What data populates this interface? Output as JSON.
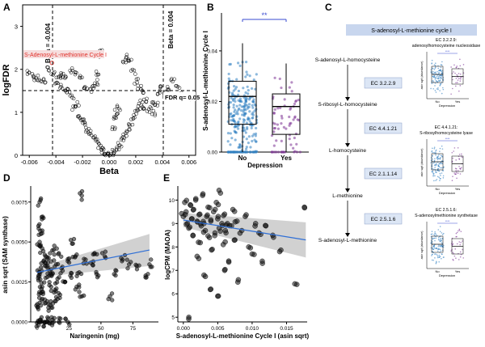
{
  "panels": {
    "A": {
      "letter": "A",
      "xlabel": "Beta",
      "ylabel": "logFDR",
      "xticks": [
        "-0.006",
        "-0.004",
        "-0.002",
        "0.000",
        "0.002",
        "0.004",
        "0.006"
      ],
      "yticks": [
        "0",
        "1",
        "2",
        "3"
      ],
      "beta_neg_label": "Beta = -0.004",
      "beta_pos_label": "Beta = 0.004",
      "fdr_label": "FDR q= 0.05",
      "highlight_label": "S-Adenosyl-L-methionine Cycle I",
      "colors": {
        "points": "#000000",
        "highlight": "#e0302a",
        "highlight_bg": "#f6dede"
      }
    },
    "B": {
      "letter": "B",
      "ylabel": "S-adenosyl-L-methionine Cycle I",
      "xlabel": "Depression",
      "categories": [
        "No",
        "Yes"
      ],
      "yticks": [
        "0.00",
        "0.02",
        "0.04"
      ],
      "sig": "**",
      "colors": {
        "no": "#2f7fc1",
        "yes": "#7b3294",
        "sig": "#3a4bd0"
      }
    },
    "C": {
      "letter": "C",
      "header": "S-adenosyl-L-methionine cycle I",
      "steps": [
        "S-adenosyl-L-homocysteine",
        "S-ribosyl-L-homocysteine",
        "L-homocysteine",
        "L-methionine",
        "S-adenosyl-L-methionine"
      ],
      "enzymes": [
        "EC 3.2.2.9",
        "EC 4.4.1.21",
        "EC 2.1.1.14",
        "EC 2.5.1.6"
      ],
      "mini_titles": [
        "EC 3.2.2.9:\nadenosylhomocysteine nucleosidase",
        "EC 4.4.1.21:\nS-ribosylhomocysteine lyase",
        "EC 2.5.1.6:\nS-adenosylmethionine synthetase"
      ],
      "mini_xlabel": "Depression",
      "mini_ylabel": "asin sqrt (abundance)",
      "mini_cats": [
        "No",
        "Yes"
      ],
      "mini_sig": "****",
      "colors": {
        "header_bg": "#c8d6ee",
        "box_bg": "#dce6f5"
      }
    },
    "D": {
      "letter": "D",
      "xlabel": "Naringenin (mg)",
      "ylabel": "asin sqrt (SAM synthase)",
      "xticks": [
        "0",
        "25",
        "50",
        "75"
      ],
      "yticks": [
        "0.0000",
        "0.0025",
        "0.0050",
        "0.0075"
      ]
    },
    "E": {
      "letter": "E",
      "xlabel": "S-adenosyl-L-methionine Cycle I (asin sqrt)",
      "ylabel": "logCPM (MAOA)",
      "xticks": [
        "0.000",
        "0.005",
        "0.010",
        "0.015"
      ],
      "yticks": [
        "5",
        "6",
        "7",
        "8",
        "9",
        "10"
      ]
    }
  },
  "chart_data": [
    {
      "type": "scatter",
      "panel": "A",
      "title": "",
      "xlabel": "Beta",
      "ylabel": "logFDR",
      "xlim": [
        -0.0065,
        0.0065
      ],
      "ylim": [
        0,
        3.5
      ],
      "reference_lines": {
        "x": [
          -0.004,
          0.004
        ],
        "y": 1.3
      },
      "highlighted": {
        "label": "S-Adenosyl-L-methionine Cycle I",
        "x": -0.0043,
        "y": 2.15
      },
      "series": [
        {
          "name": "pathways",
          "note": "volcano shape; sample points estimated",
          "points": [
            [
              -0.006,
              1.92
            ],
            [
              -0.0057,
              1.86
            ],
            [
              -0.0055,
              1.8
            ],
            [
              -0.0052,
              1.75
            ],
            [
              -0.0048,
              1.72
            ],
            [
              -0.0045,
              2.0
            ],
            [
              -0.0042,
              1.92
            ],
            [
              -0.0038,
              1.82
            ],
            [
              -0.0036,
              1.6
            ],
            [
              -0.0034,
              1.78
            ],
            [
              -0.0032,
              1.52
            ],
            [
              -0.003,
              1.48
            ],
            [
              -0.0028,
              1.35
            ],
            [
              -0.0026,
              1.1
            ],
            [
              -0.0024,
              1.2
            ],
            [
              -0.0022,
              0.92
            ],
            [
              -0.002,
              0.88
            ],
            [
              -0.0018,
              0.72
            ],
            [
              -0.0016,
              0.6
            ],
            [
              -0.0014,
              0.52
            ],
            [
              -0.0012,
              0.42
            ],
            [
              -0.001,
              0.32
            ],
            [
              -0.0008,
              0.22
            ],
            [
              -0.0006,
              0.14
            ],
            [
              -0.0004,
              0.08
            ],
            [
              -0.0002,
              0.03
            ],
            [
              0.0,
              0.01
            ],
            [
              0.0002,
              0.04
            ],
            [
              0.0004,
              0.1
            ],
            [
              0.0006,
              0.18
            ],
            [
              0.0008,
              0.26
            ],
            [
              0.001,
              0.35
            ],
            [
              0.0012,
              0.46
            ],
            [
              0.0014,
              0.58
            ],
            [
              0.0016,
              0.7
            ],
            [
              0.0018,
              0.85
            ],
            [
              0.002,
              0.98
            ],
            [
              0.0022,
              1.1
            ],
            [
              0.0024,
              1.22
            ],
            [
              0.0026,
              1.12
            ],
            [
              0.0028,
              1.3
            ],
            [
              0.003,
              1.05
            ],
            [
              0.0032,
              1.18
            ],
            [
              0.0034,
              0.98
            ],
            [
              0.0036,
              1.2
            ],
            [
              0.0038,
              1.45
            ],
            [
              0.004,
              1.62
            ],
            [
              0.0042,
              1.4
            ],
            [
              0.0044,
              1.55
            ],
            [
              0.0048,
              1.75
            ],
            [
              0.0052,
              1.62
            ],
            [
              0.0056,
              1.42
            ],
            [
              0.006,
              1.35
            ],
            [
              0.0003,
              0.62
            ],
            [
              0.0005,
              0.86
            ],
            [
              0.0006,
              1.0
            ],
            [
              0.0007,
              1.1
            ],
            [
              0.0012,
              2.22
            ],
            [
              0.0014,
              2.28
            ],
            [
              0.0016,
              2.2
            ],
            [
              -0.0008,
              2.35
            ],
            [
              -0.0007,
              2.4
            ],
            [
              -0.0009,
              1.9
            ],
            [
              -0.001,
              1.7
            ],
            [
              -0.0012,
              1.58
            ],
            [
              -0.0015,
              1.52
            ],
            [
              -0.0018,
              1.6
            ],
            [
              -0.0021,
              1.85
            ],
            [
              -0.0024,
              1.92
            ],
            [
              -0.0029,
              1.97
            ],
            [
              -0.0035,
              1.88
            ],
            [
              -0.004,
              1.65
            ],
            [
              0.0018,
              1.95
            ],
            [
              0.002,
              1.72
            ],
            [
              0.0023,
              1.58
            ],
            [
              0.0025,
              1.5
            ]
          ]
        }
      ]
    },
    {
      "type": "box",
      "panel": "B",
      "ylabel": "S-adenosyl-L-methionine Cycle I",
      "xlabel": "Depression",
      "categories": [
        "No",
        "Yes"
      ],
      "ylim": [
        0,
        0.055
      ],
      "series": [
        {
          "name": "No",
          "q1": 0.011,
          "median": 0.022,
          "q3": 0.028,
          "whisker_low": 0.0,
          "whisker_high": 0.043
        },
        {
          "name": "Yes",
          "q1": 0.007,
          "median": 0.018,
          "q3": 0.023,
          "whisker_low": 0.0,
          "whisker_high": 0.035
        }
      ]
    },
    {
      "type": "scatter",
      "panel": "D",
      "xlabel": "Naringenin (mg)",
      "ylabel": "asin sqrt (SAM synthase)",
      "xlim": [
        -5,
        95
      ],
      "ylim": [
        0,
        0.0085
      ],
      "trend": {
        "x": [
          0,
          88
        ],
        "y": [
          0.0031,
          0.0045
        ],
        "ci_low": [
          0.0028,
          0.0035
        ],
        "ci_high": [
          0.0034,
          0.0055
        ]
      },
      "series": [
        {
          "name": "samples",
          "points": [
            [
              1,
              0.0
            ],
            [
              2,
              0.0
            ],
            [
              3,
              0.0
            ],
            [
              5,
              0.0
            ],
            [
              7,
              0.0
            ],
            [
              8,
              0.0
            ],
            [
              10,
              0.0
            ],
            [
              13,
              0.0
            ],
            [
              17,
              0.0
            ],
            [
              24,
              0.0
            ],
            [
              1,
              0.0008
            ],
            [
              2,
              0.0012
            ],
            [
              3,
              0.0018
            ],
            [
              4,
              0.0022
            ],
            [
              1,
              0.0026
            ],
            [
              2,
              0.003
            ],
            [
              3,
              0.0034
            ],
            [
              5,
              0.0038
            ],
            [
              6,
              0.0042
            ],
            [
              4,
              0.0046
            ],
            [
              2,
              0.005
            ],
            [
              3,
              0.0055
            ],
            [
              1,
              0.006
            ],
            [
              5,
              0.0065
            ],
            [
              7,
              0.0035
            ],
            [
              8,
              0.0028
            ],
            [
              9,
              0.004
            ],
            [
              10,
              0.0032
            ],
            [
              11,
              0.0022
            ],
            [
              12,
              0.003
            ],
            [
              13,
              0.0045
            ],
            [
              14,
              0.002
            ],
            [
              15,
              0.0036
            ],
            [
              16,
              0.0027
            ],
            [
              17,
              0.0043
            ],
            [
              18,
              0.0017
            ],
            [
              20,
              0.0032
            ],
            [
              22,
              0.0025
            ],
            [
              24,
              0.0038
            ],
            [
              26,
              0.0029
            ],
            [
              28,
              0.0049
            ],
            [
              30,
              0.0041
            ],
            [
              31,
              0.0022
            ],
            [
              33,
              0.0031
            ],
            [
              35,
              0.0016
            ],
            [
              38,
              0.0039
            ],
            [
              42,
              0.0037
            ],
            [
              45,
              0.0043
            ],
            [
              48,
              0.0029
            ],
            [
              53,
              0.0041
            ],
            [
              57,
              0.0016
            ],
            [
              62,
              0.0032
            ],
            [
              67,
              0.0039
            ],
            [
              72,
              0.0036
            ],
            [
              78,
              0.0035
            ],
            [
              88,
              0.0036
            ],
            [
              85,
              0.0029
            ],
            [
              2,
              0.0075
            ],
            [
              35,
              0.0079
            ],
            [
              4,
              0.0019
            ],
            [
              6,
              0.0014
            ],
            [
              9,
              0.0011
            ],
            [
              11,
              0.0009
            ],
            [
              14,
              0.0013
            ]
          ]
        }
      ]
    },
    {
      "type": "scatter",
      "panel": "E",
      "xlabel": "S-adenosyl-L-methionine Cycle I (asin sqrt)",
      "ylabel": "logCPM (MAOA)",
      "xlim": [
        -0.0008,
        0.018
      ],
      "ylim": [
        4.8,
        10.6
      ],
      "trend": {
        "x": [
          0,
          0.0178
        ],
        "y": [
          9.15,
          8.3
        ],
        "ci_low": [
          8.85,
          7.55
        ],
        "ci_high": [
          9.45,
          9.05
        ]
      },
      "series": [
        {
          "name": "samples",
          "points": [
            [
              0.0,
              9.3
            ],
            [
              0.0002,
              9.9
            ],
            [
              0.0004,
              9.5
            ],
            [
              0.0006,
              9.0
            ],
            [
              0.0008,
              8.8
            ],
            [
              0.001,
              9.8
            ],
            [
              0.0012,
              9.2
            ],
            [
              0.0014,
              8.5
            ],
            [
              0.0015,
              9.6
            ],
            [
              0.0018,
              10.0
            ],
            [
              0.002,
              9.1
            ],
            [
              0.0022,
              8.2
            ],
            [
              0.0024,
              9.4
            ],
            [
              0.0026,
              8.9
            ],
            [
              0.0028,
              10.2
            ],
            [
              0.003,
              9.0
            ],
            [
              0.0032,
              8.7
            ],
            [
              0.0034,
              9.3
            ],
            [
              0.0036,
              9.7
            ],
            [
              0.0038,
              8.4
            ],
            [
              0.004,
              9.1
            ],
            [
              0.0042,
              7.9
            ],
            [
              0.0044,
              9.5
            ],
            [
              0.0046,
              8.6
            ],
            [
              0.0048,
              9.9
            ],
            [
              0.005,
              9.2
            ],
            [
              0.0052,
              8.8
            ],
            [
              0.0054,
              10.3
            ],
            [
              0.0056,
              9.0
            ],
            [
              0.0058,
              8.1
            ],
            [
              0.006,
              9.4
            ],
            [
              0.0062,
              8.6
            ],
            [
              0.0064,
              9.0
            ],
            [
              0.0066,
              7.4
            ],
            [
              0.007,
              8.9
            ],
            [
              0.0072,
              9.6
            ],
            [
              0.0075,
              8.3
            ],
            [
              0.0078,
              9.1
            ],
            [
              0.008,
              6.6
            ],
            [
              0.0085,
              8.7
            ],
            [
              0.009,
              9.3
            ],
            [
              0.0095,
              8.0
            ],
            [
              0.01,
              7.7
            ],
            [
              0.0105,
              9.0
            ],
            [
              0.011,
              8.6
            ],
            [
              0.0115,
              7.3
            ],
            [
              0.012,
              8.9
            ],
            [
              0.013,
              8.5
            ],
            [
              0.014,
              7.8
            ],
            [
              0.0165,
              6.4
            ],
            [
              0.0176,
              9.7
            ],
            [
              0.004,
              6.2
            ],
            [
              0.005,
              5.9
            ],
            [
              0.003,
              6.8
            ],
            [
              0.0008,
              5.0
            ],
            [
              0.006,
              7.0
            ],
            [
              0.002,
              7.6
            ]
          ]
        }
      ]
    }
  ]
}
